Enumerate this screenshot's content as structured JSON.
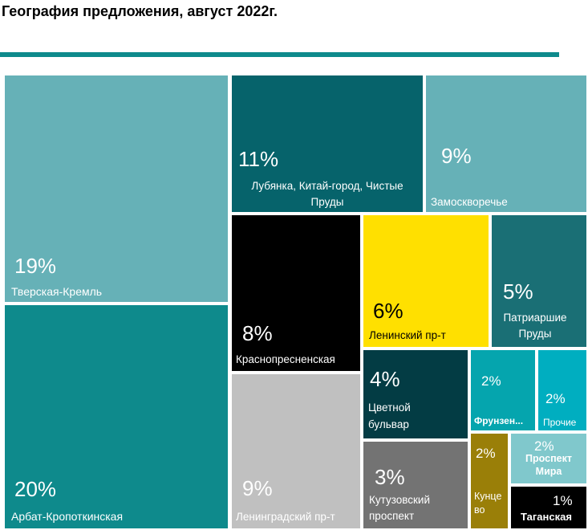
{
  "title": "География предложения, август 2022г.",
  "colors": {
    "rule": "#0e8a8c"
  },
  "chart_data": {
    "type": "treemap",
    "title": "География предложения, август 2022г.",
    "unit": "%",
    "items": [
      {
        "name": "Тверская-Кремль",
        "value": 19,
        "value_label": "19%",
        "color": "#66b1b7"
      },
      {
        "name": "Арбат-Кропоткинская",
        "value": 20,
        "value_label": "20%",
        "color": "#0e8a8c"
      },
      {
        "name": "Лубянка, Китай-город, Чистые Пруды",
        "value": 11,
        "value_label": "11%",
        "color": "#06636b"
      },
      {
        "name": "Замоскворечье",
        "value": 9,
        "value_label": "9%",
        "color": "#66b1b7"
      },
      {
        "name": "Краснопресненская",
        "value": 8,
        "value_label": "8%",
        "color": "#000000"
      },
      {
        "name": "Ленинградский пр-т",
        "value": 9,
        "value_label": "9%",
        "color": "#c0c0c0"
      },
      {
        "name": "Ленинский пр-т",
        "value": 6,
        "value_label": "6%",
        "color": "#ffe000"
      },
      {
        "name": "Патриаршие Пруды",
        "value": 5,
        "value_label": "5%",
        "color": "#1a6f75"
      },
      {
        "name": "Цветной бульвар",
        "value": 4,
        "value_label": "4%",
        "color": "#033c44"
      },
      {
        "name": "Кутузовский проспект",
        "value": 3,
        "value_label": "3%",
        "color": "#737373"
      },
      {
        "name": "Фрунзен...",
        "value": 2,
        "value_label": "2%",
        "color": "#05a5ae"
      },
      {
        "name": "Прочие",
        "value": 2,
        "value_label": "2%",
        "color": "#00aec0"
      },
      {
        "name": "Кунцево",
        "value": 2,
        "value_label": "2%",
        "color": "#9a7f08"
      },
      {
        "name": "Проспект Мира",
        "value": 2,
        "value_label": "2%",
        "color": "#80c8cc"
      },
      {
        "name": "Таганская",
        "value": 1,
        "value_label": "1%",
        "color": "#000000"
      }
    ]
  }
}
